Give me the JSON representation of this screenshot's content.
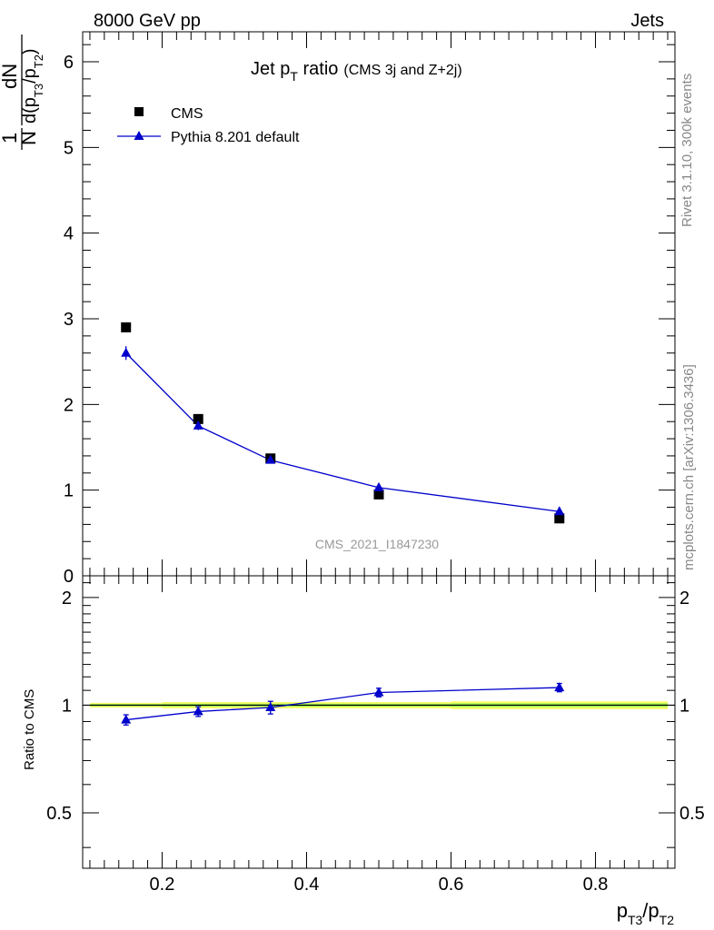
{
  "header": {
    "beam": "8000 GeV pp",
    "category": "Jets"
  },
  "side_labels": {
    "rivet": "Rivet 3.1.10,  300k events",
    "site": "mcplots.cern.ch [arXiv:1306.3436]"
  },
  "chart_data": {
    "type": "scatter",
    "title": "Jet p",
    "title_sub": "T",
    "title_suffix": " ratio",
    "title_note": "(CMS 3j and Z+2j)",
    "watermark": "CMS_2021_I1847230",
    "xlabel": {
      "a": "p",
      "a_sub": "T3",
      "slash": "/p",
      "b_sub": "T2"
    },
    "ylabel": {
      "frac_num": "1",
      "frac_den": "N",
      "d_num": "dN",
      "d_den": "d(p",
      "d_den_sub1": "T3",
      "d_den_mid": "/p",
      "d_den_sub2": "T2",
      "d_den_end": ")"
    },
    "ratio_ylabel": "Ratio to CMS",
    "xlim": [
      0.09,
      0.91
    ],
    "ylim": [
      0,
      6.35
    ],
    "ratio_ylim": [
      0.35,
      2.3
    ],
    "x_ticks": [
      0.2,
      0.4,
      0.6,
      0.8
    ],
    "x_tick_labels": [
      "0.2",
      "0.4",
      "0.6",
      "0.8"
    ],
    "y_ticks": [
      0,
      1,
      2,
      3,
      4,
      5,
      6
    ],
    "y_tick_labels": [
      "0",
      "1",
      "2",
      "3",
      "4",
      "5",
      "6"
    ],
    "ratio_y_ticks": [
      0.5,
      1,
      2
    ],
    "ratio_y_tick_labels": [
      "0.5",
      "1",
      "2"
    ],
    "series": [
      {
        "name": "CMS",
        "marker": "square",
        "color": "#000000",
        "x": [
          0.15,
          0.25,
          0.35,
          0.5,
          0.75
        ],
        "y": [
          2.9,
          1.83,
          1.37,
          0.95,
          0.67
        ],
        "yerr": [
          0.03,
          0.02,
          0.02,
          0.015,
          0.015
        ]
      },
      {
        "name": "Pythia 8.201 default",
        "marker": "triangle",
        "color": "#0000cc",
        "x": [
          0.15,
          0.25,
          0.35,
          0.5,
          0.75
        ],
        "y": [
          2.6,
          1.75,
          1.35,
          1.03,
          0.75
        ],
        "yerr": [
          0.08,
          0.05,
          0.04,
          0.03,
          0.025
        ]
      }
    ],
    "ratio_series": {
      "name": "Pythia 8.201 default",
      "x": [
        0.15,
        0.25,
        0.35,
        0.5,
        0.75
      ],
      "y": [
        0.91,
        0.96,
        0.985,
        1.085,
        1.12
      ],
      "yerr": [
        0.03,
        0.03,
        0.04,
        0.03,
        0.03
      ]
    },
    "ratio_band": {
      "color_outer": "#ffff66",
      "color_inner": "#99ee55",
      "bins": [
        {
          "x0": 0.1,
          "x1": 0.2,
          "lo": 0.985,
          "hi": 1.015
        },
        {
          "x0": 0.2,
          "x1": 0.3,
          "lo": 0.98,
          "hi": 1.02
        },
        {
          "x0": 0.3,
          "x1": 0.4,
          "lo": 0.98,
          "hi": 1.02
        },
        {
          "x0": 0.4,
          "x1": 0.6,
          "lo": 0.98,
          "hi": 1.02
        },
        {
          "x0": 0.6,
          "x1": 0.9,
          "lo": 0.975,
          "hi": 1.025
        }
      ]
    }
  }
}
